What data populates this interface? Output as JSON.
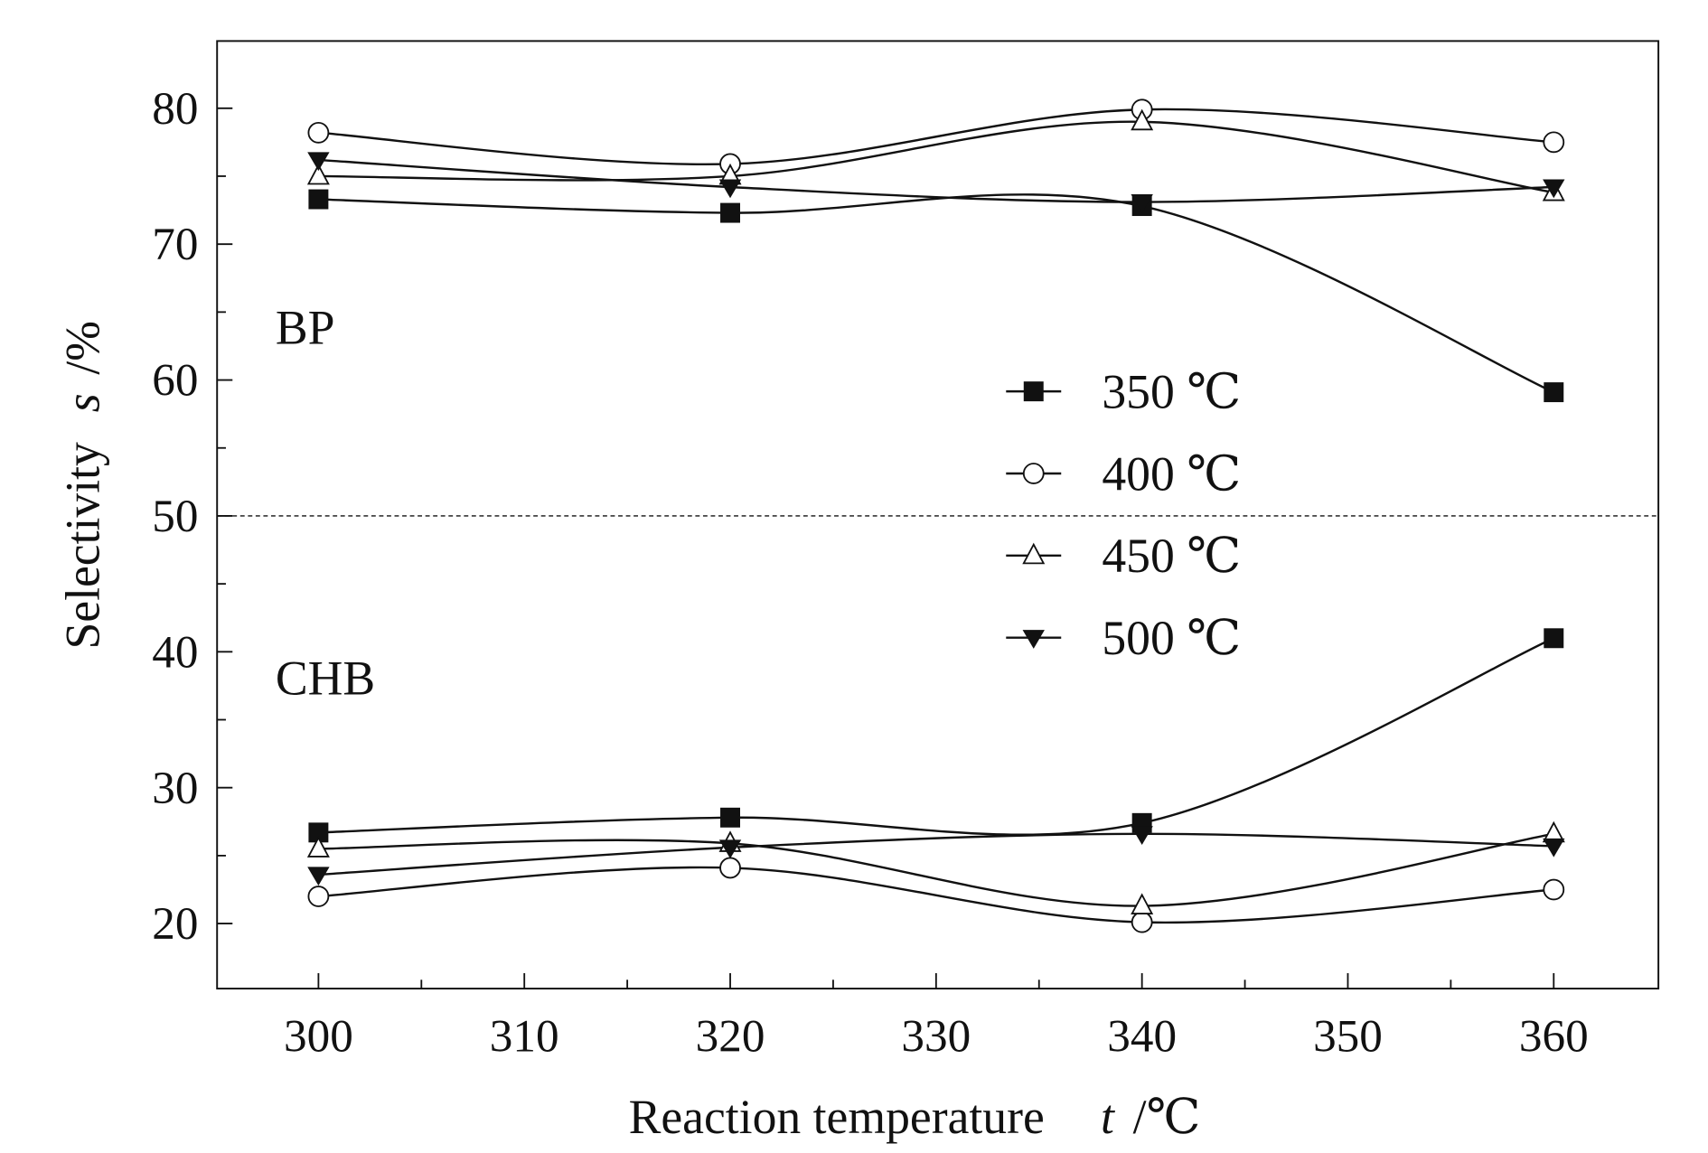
{
  "chart_data": {
    "type": "line",
    "title": "",
    "xlabel": "Reaction temperature",
    "xlabel_symbol": "t",
    "xlabel_unit": "/℃",
    "ylabel": "Selectivity",
    "ylabel_symbol": "s",
    "ylabel_unit": "/%",
    "xlim": [
      295,
      365
    ],
    "ylim": [
      15,
      85
    ],
    "xticks": [
      "300",
      "310",
      "320",
      "330",
      "340",
      "350",
      "360"
    ],
    "yticks": [
      "20",
      "30",
      "40",
      "50",
      "60",
      "70",
      "80"
    ],
    "x": [
      300,
      320,
      340,
      360
    ],
    "reference_line": {
      "y": 50,
      "style": "dashed"
    },
    "annotations": [
      "BP",
      "CHB"
    ],
    "legend_position": "center-right",
    "series": [
      {
        "name": "350 ℃",
        "marker": "filled-square",
        "group": "BP",
        "values": [
          73.3,
          72.3,
          72.8,
          59.1
        ]
      },
      {
        "name": "400 ℃",
        "marker": "open-circle",
        "group": "BP",
        "values": [
          78.2,
          75.9,
          79.9,
          77.5
        ]
      },
      {
        "name": "450 ℃",
        "marker": "open-triangle",
        "group": "BP",
        "values": [
          75.0,
          75.0,
          79.0,
          73.8
        ]
      },
      {
        "name": "500 ℃",
        "marker": "filled-down-triangle",
        "group": "BP",
        "values": [
          76.2,
          74.2,
          73.1,
          74.2
        ]
      },
      {
        "name": "350 ℃",
        "marker": "filled-square",
        "group": "CHB",
        "values": [
          26.7,
          27.8,
          27.4,
          41.0
        ]
      },
      {
        "name": "400 ℃",
        "marker": "open-circle",
        "group": "CHB",
        "values": [
          22.0,
          24.1,
          20.1,
          22.5
        ]
      },
      {
        "name": "450 ℃",
        "marker": "open-triangle",
        "group": "CHB",
        "values": [
          25.5,
          25.9,
          21.3,
          26.6
        ]
      },
      {
        "name": "500 ℃",
        "marker": "filled-down-triangle",
        "group": "CHB",
        "values": [
          23.6,
          25.6,
          26.6,
          25.7
        ]
      }
    ],
    "legend": [
      {
        "label": "350 ℃",
        "marker": "filled-square"
      },
      {
        "label": "400 ℃",
        "marker": "open-circle"
      },
      {
        "label": "450 ℃",
        "marker": "open-triangle"
      },
      {
        "label": "500 ℃",
        "marker": "filled-down-triangle"
      }
    ]
  }
}
